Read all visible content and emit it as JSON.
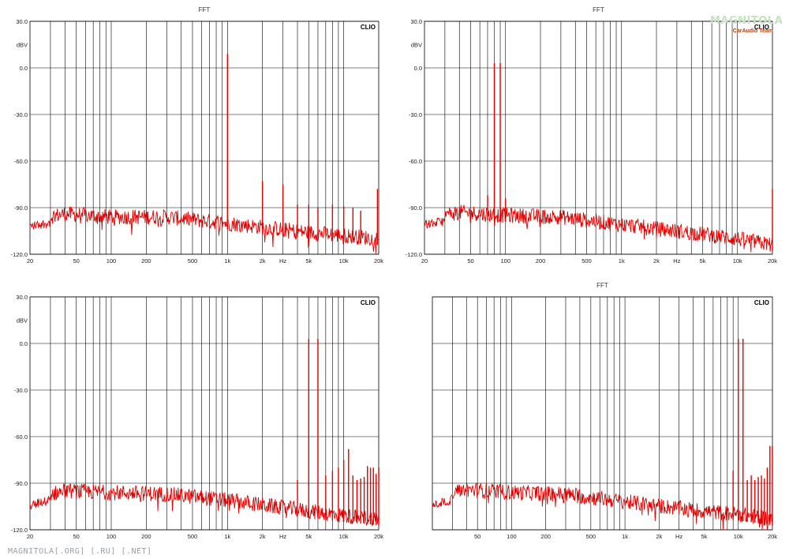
{
  "watermark": "MAGNITOLA[.ORG] [.RU] [.NET]",
  "logo": {
    "word": "MAGNITOLA",
    "sub": "CarAudio Team"
  },
  "colors": {
    "trace": "#e00000",
    "grid": "#000000",
    "background": "#ffffff"
  },
  "chart_data": [
    {
      "type": "line",
      "title": "FFT",
      "brand": "CLIO",
      "ylabel": "dBV",
      "x_scale": "log",
      "xlim": [
        20,
        20000
      ],
      "ylim": [
        -120,
        30
      ],
      "ytick_labels": [
        "30.0",
        "0.0",
        "-30.0",
        "-60.0",
        "-90.0",
        "-120.0"
      ],
      "xtick_labels": [
        "20",
        "50",
        "100",
        "200",
        "500",
        "1k",
        "2k",
        "Hz",
        "5k",
        "10k",
        "20k"
      ],
      "noise_floor": {
        "x": [
          20,
          40,
          100,
          300,
          1000,
          5000,
          10000,
          20000
        ],
        "y": [
          -98,
          -94,
          -96,
          -96,
          -100,
          -106,
          -108,
          -110
        ]
      },
      "peaks": [
        {
          "x": 1000,
          "y": 9
        },
        {
          "x": 2000,
          "y": -73
        },
        {
          "x": 3000,
          "y": -75
        },
        {
          "x": 4000,
          "y": -88
        },
        {
          "x": 5000,
          "y": -88
        },
        {
          "x": 6000,
          "y": -90
        },
        {
          "x": 8000,
          "y": -88
        },
        {
          "x": 10000,
          "y": -89
        },
        {
          "x": 12000,
          "y": -90
        },
        {
          "x": 14000,
          "y": -92
        },
        {
          "x": 19500,
          "y": -78
        }
      ]
    },
    {
      "type": "line",
      "title": "FFT",
      "brand": "CLIO",
      "ylabel": "dBV",
      "x_scale": "log",
      "xlim": [
        20,
        20000
      ],
      "ylim": [
        -120,
        30
      ],
      "ytick_labels": [
        "30.0",
        "0.0",
        "-30.0",
        "-60.0",
        "-90.0",
        "-120.0"
      ],
      "xtick_labels": [
        "20",
        "50",
        "100",
        "200",
        "500",
        "1k",
        "2k",
        "Hz",
        "5k",
        "10k",
        "20k"
      ],
      "noise_floor": {
        "x": [
          20,
          40,
          100,
          300,
          1000,
          5000,
          10000,
          20000
        ],
        "y": [
          -97,
          -93,
          -95,
          -96,
          -101,
          -107,
          -110,
          -114
        ]
      },
      "peaks": [
        {
          "x": 80,
          "y": 3
        },
        {
          "x": 90,
          "y": 3
        },
        {
          "x": 70,
          "y": -82
        },
        {
          "x": 100,
          "y": -84
        },
        {
          "x": 20000,
          "y": -78
        }
      ]
    },
    {
      "type": "line",
      "title": "",
      "brand": "CLIO",
      "ylabel": "dBV",
      "x_scale": "log",
      "xlim": [
        20,
        20000
      ],
      "ylim": [
        -120,
        30
      ],
      "ytick_labels": [
        "30.0",
        "0.0",
        "-30.0",
        "-60.0",
        "-90.0",
        "-120.0"
      ],
      "xtick_labels": [
        "20",
        "50",
        "100",
        "200",
        "500",
        "1k",
        "2k",
        "Hz",
        "5k",
        "10k",
        "20k"
      ],
      "noise_floor": {
        "x": [
          20,
          40,
          100,
          300,
          1000,
          5000,
          10000,
          20000
        ],
        "y": [
          -100,
          -95,
          -96,
          -97,
          -101,
          -108,
          -111,
          -113
        ]
      },
      "peaks": [
        {
          "x": 5000,
          "y": 3
        },
        {
          "x": 6000,
          "y": 3
        },
        {
          "x": 7000,
          "y": -85
        },
        {
          "x": 4000,
          "y": -88
        },
        {
          "x": 8000,
          "y": -82
        },
        {
          "x": 9000,
          "y": -80
        },
        {
          "x": 10000,
          "y": -75
        },
        {
          "x": 11000,
          "y": -68
        },
        {
          "x": 12000,
          "y": -85
        },
        {
          "x": 13000,
          "y": -88
        },
        {
          "x": 14000,
          "y": -87
        },
        {
          "x": 15000,
          "y": -86
        },
        {
          "x": 16000,
          "y": -79
        },
        {
          "x": 17000,
          "y": -80
        },
        {
          "x": 18000,
          "y": -80
        },
        {
          "x": 19000,
          "y": -84
        },
        {
          "x": 20000,
          "y": -80
        }
      ]
    },
    {
      "type": "line",
      "title": "FFT",
      "brand": "CLIO",
      "ylabel": "",
      "x_scale": "log",
      "xlim": [
        20,
        20000
      ],
      "ylim": [
        -120,
        30
      ],
      "ytick_labels": [],
      "xtick_labels": [
        "50",
        "100",
        "200",
        "500",
        "1k",
        "2k",
        "Hz",
        "5k",
        "10k",
        "20k"
      ],
      "noise_floor": {
        "x": [
          20,
          40,
          100,
          300,
          1000,
          5000,
          10000,
          20000
        ],
        "y": [
          -100,
          -94,
          -96,
          -97,
          -102,
          -108,
          -110,
          -113
        ]
      },
      "peaks": [
        {
          "x": 10000,
          "y": 3
        },
        {
          "x": 11000,
          "y": 3
        },
        {
          "x": 9000,
          "y": -82
        },
        {
          "x": 12000,
          "y": -88
        },
        {
          "x": 13000,
          "y": -85
        },
        {
          "x": 14000,
          "y": -88
        },
        {
          "x": 15000,
          "y": -86
        },
        {
          "x": 16000,
          "y": -85
        },
        {
          "x": 17000,
          "y": -87
        },
        {
          "x": 18000,
          "y": -80
        },
        {
          "x": 19000,
          "y": -66
        },
        {
          "x": 20000,
          "y": -66
        }
      ]
    }
  ]
}
